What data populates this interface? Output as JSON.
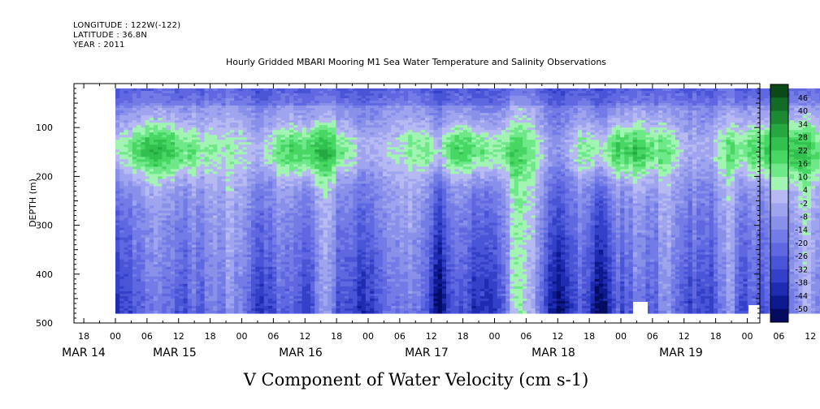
{
  "meta": {
    "longitude": "LONGITUDE : 122W(-122)",
    "latitude": "LATITUDE : 36.8N",
    "year": "YEAR : 2011"
  },
  "chart_data": {
    "type": "heatmap",
    "title": "Hourly Gridded MBARI Mooring M1 Sea Water Temperature and Salinity Observations",
    "xlabel": "V Component of Water Velocity (cm s-1)",
    "ylabel": "DEPTH (m)",
    "ylim": [
      500,
      10
    ],
    "y_ticks": [
      100,
      200,
      300,
      400,
      500
    ],
    "x_hour_ticks": [
      {
        "day": -1,
        "hour": 18,
        "label": "18"
      },
      {
        "day": 0,
        "hour": 0,
        "label": "00"
      },
      {
        "day": 0,
        "hour": 6,
        "label": "06"
      },
      {
        "day": 0,
        "hour": 12,
        "label": "12"
      },
      {
        "day": 0,
        "hour": 18,
        "label": "18"
      },
      {
        "day": 1,
        "hour": 0,
        "label": "00"
      },
      {
        "day": 1,
        "hour": 6,
        "label": "06"
      },
      {
        "day": 1,
        "hour": 12,
        "label": "12"
      },
      {
        "day": 1,
        "hour": 18,
        "label": "18"
      },
      {
        "day": 2,
        "hour": 0,
        "label": "00"
      },
      {
        "day": 2,
        "hour": 6,
        "label": "06"
      },
      {
        "day": 2,
        "hour": 12,
        "label": "12"
      },
      {
        "day": 2,
        "hour": 18,
        "label": "18"
      },
      {
        "day": 3,
        "hour": 0,
        "label": "00"
      },
      {
        "day": 3,
        "hour": 6,
        "label": "06"
      },
      {
        "day": 3,
        "hour": 12,
        "label": "12"
      },
      {
        "day": 3,
        "hour": 18,
        "label": "18"
      },
      {
        "day": 4,
        "hour": 0,
        "label": "00"
      },
      {
        "day": 4,
        "hour": 6,
        "label": "06"
      },
      {
        "day": 4,
        "hour": 12,
        "label": "12"
      },
      {
        "day": 4,
        "hour": 18,
        "label": "18"
      },
      {
        "day": 5,
        "hour": 0,
        "label": "00"
      },
      {
        "day": 5,
        "hour": 6,
        "label": "06"
      },
      {
        "day": 5,
        "hour": 12,
        "label": "12"
      },
      {
        "day": 5,
        "hour": 18,
        "label": "18"
      },
      {
        "day": 6,
        "hour": 0,
        "label": "00"
      }
    ],
    "x_day_labels": [
      "MAR 14",
      "MAR 15",
      "MAR 16",
      "MAR 17",
      "MAR 18",
      "MAR 19"
    ],
    "colorbar": {
      "labels": [
        "46",
        "40",
        "34",
        "28",
        "22",
        "16",
        "10",
        "4",
        "-2",
        "-8",
        "-14",
        "-20",
        "-26",
        "-32",
        "-38",
        "-44",
        "-50"
      ],
      "colors": [
        "#0b4a18",
        "#126b26",
        "#1b8a33",
        "#26a840",
        "#32c04f",
        "#47d762",
        "#6ee888",
        "#a2f4b2",
        "#b6b9f2",
        "#9ea4ee",
        "#8990ea",
        "#737ce6",
        "#5f68e0",
        "#4a54d6",
        "#3440c8",
        "#1f2cb2",
        "#0e1990",
        "#040b60"
      ]
    },
    "data_extent": {
      "start": "MAR 15 00",
      "end": "MAR 20 01",
      "depth_top": 20,
      "depth_bottom": 480
    },
    "scale_range": [
      -50,
      52
    ],
    "grid": false
  }
}
